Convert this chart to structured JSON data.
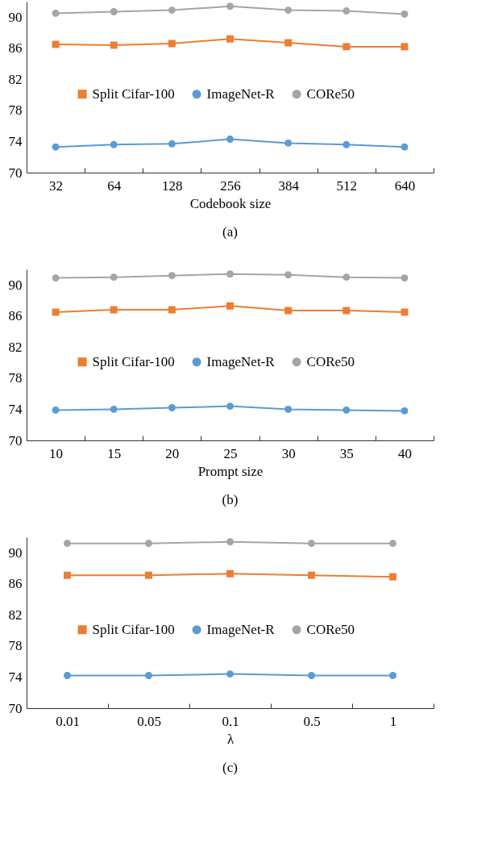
{
  "chart_data": [
    {
      "type": "line",
      "xlabel": "Codebook size",
      "annotations": [
        "(a)"
      ],
      "categories": [
        "32",
        "64",
        "128",
        "256",
        "384",
        "512",
        "640"
      ],
      "ylim": [
        70,
        92
      ],
      "yticks": [
        70,
        74,
        78,
        82,
        86,
        90
      ],
      "grid": false,
      "legend": "center",
      "series": [
        {
          "name": "Split Cifar-100",
          "color": "#ed7d31",
          "marker": "square",
          "values": [
            86.5,
            86.4,
            86.6,
            87.2,
            86.7,
            86.2,
            86.2
          ]
        },
        {
          "name": "ImageNet-R",
          "color": "#5b9bd5",
          "marker": "circle",
          "values": [
            73.3,
            73.6,
            73.7,
            74.3,
            73.8,
            73.6,
            73.3
          ]
        },
        {
          "name": "CORe50",
          "color": "#a5a5a5",
          "marker": "circle",
          "values": [
            90.5,
            90.7,
            90.9,
            91.4,
            90.9,
            90.8,
            90.4
          ]
        }
      ]
    },
    {
      "type": "line",
      "xlabel": "Prompt size",
      "annotations": [
        "(b)"
      ],
      "categories": [
        "10",
        "15",
        "20",
        "25",
        "30",
        "35",
        "40"
      ],
      "ylim": [
        70,
        92
      ],
      "yticks": [
        70,
        74,
        78,
        82,
        86,
        90
      ],
      "grid": false,
      "legend": "center",
      "series": [
        {
          "name": "Split Cifar-100",
          "color": "#ed7d31",
          "marker": "square",
          "values": [
            86.5,
            86.8,
            86.8,
            87.3,
            86.7,
            86.7,
            86.5
          ]
        },
        {
          "name": "ImageNet-R",
          "color": "#5b9bd5",
          "marker": "circle",
          "values": [
            73.9,
            74.0,
            74.2,
            74.4,
            74.0,
            73.9,
            73.8
          ]
        },
        {
          "name": "CORe50",
          "color": "#a5a5a5",
          "marker": "circle",
          "values": [
            90.9,
            91.0,
            91.2,
            91.4,
            91.3,
            91.0,
            90.9
          ]
        }
      ]
    },
    {
      "type": "line",
      "xlabel": "λ",
      "annotations": [
        "(c)"
      ],
      "categories": [
        "0.01",
        "0.05",
        "0.1",
        "0.5",
        "1"
      ],
      "ylim": [
        70,
        92
      ],
      "yticks": [
        70,
        74,
        78,
        82,
        86,
        90
      ],
      "grid": false,
      "legend": "center",
      "series": [
        {
          "name": "Split Cifar-100",
          "color": "#ed7d31",
          "marker": "square",
          "values": [
            87.1,
            87.1,
            87.3,
            87.1,
            86.9
          ]
        },
        {
          "name": "ImageNet-R",
          "color": "#5b9bd5",
          "marker": "circle",
          "values": [
            74.2,
            74.2,
            74.4,
            74.2,
            74.2
          ]
        },
        {
          "name": "CORe50",
          "color": "#a5a5a5",
          "marker": "circle",
          "values": [
            91.2,
            91.2,
            91.4,
            91.2,
            91.2
          ]
        }
      ]
    }
  ]
}
